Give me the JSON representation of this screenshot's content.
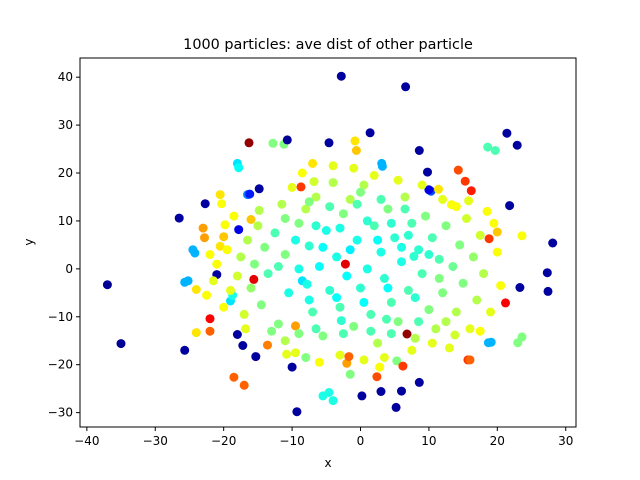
{
  "chart_data": {
    "type": "scatter",
    "title": "1000 particles: ave dist of other particle",
    "xlabel": "x",
    "ylabel": "y",
    "xlim": [
      -41,
      31.5
    ],
    "ylim": [
      -33,
      44
    ],
    "xticks": [
      -40,
      -30,
      -20,
      -10,
      0,
      10,
      20,
      30
    ],
    "yticks": [
      -30,
      -20,
      -10,
      0,
      10,
      20,
      30,
      40
    ],
    "grid": false,
    "colormap": "jet",
    "color_variable_range": [
      0,
      1
    ],
    "point_note": "Points sampled from the figure; color value c in [0,1] maps along the jet colormap (dark blue = far outliers, green-cyan = dense core).",
    "points": [
      [
        -37.0,
        -3.3,
        0.02
      ],
      [
        -35.0,
        -15.6,
        0.02
      ],
      [
        -26.5,
        10.6,
        0.03
      ],
      [
        -25.7,
        -17.0,
        0.03
      ],
      [
        -24.5,
        4.0,
        0.3
      ],
      [
        -24.2,
        3.3,
        0.3
      ],
      [
        -25.7,
        -2.8,
        0.3
      ],
      [
        -25.2,
        -2.5,
        0.3
      ],
      [
        -24.0,
        -4.3,
        0.65
      ],
      [
        -24.0,
        -13.3,
        0.65
      ],
      [
        -23.0,
        8.5,
        0.72
      ],
      [
        -22.7,
        13.6,
        0.03
      ],
      [
        -22.8,
        6.5,
        0.72
      ],
      [
        -22.0,
        -10.4,
        0.88
      ],
      [
        -22.0,
        -13.0,
        0.78
      ],
      [
        -21.0,
        -1.2,
        0.03
      ],
      [
        -20.5,
        15.5,
        0.65
      ],
      [
        -20.3,
        13.6,
        0.62
      ],
      [
        -20.5,
        4.7,
        0.65
      ],
      [
        -20.0,
        6.7,
        0.68
      ],
      [
        -19.0,
        -6.7,
        0.35
      ],
      [
        -18.7,
        -5.5,
        0.4
      ],
      [
        -18.0,
        22.0,
        0.35
      ],
      [
        -17.8,
        21.1,
        0.38
      ],
      [
        -18.5,
        -22.6,
        0.78
      ],
      [
        -17.8,
        8.2,
        0.1
      ],
      [
        -18.0,
        -13.7,
        0.03
      ],
      [
        -17.2,
        -16.0,
        0.03
      ],
      [
        -17.0,
        -24.3,
        0.78
      ],
      [
        -16.3,
        26.3,
        0.98
      ],
      [
        -16.5,
        15.5,
        0.25
      ],
      [
        -16.2,
        15.6,
        0.15
      ],
      [
        -16.0,
        10.3,
        0.68
      ],
      [
        -15.6,
        -2.2,
        0.9
      ],
      [
        -15.3,
        -18.3,
        0.03
      ],
      [
        -14.8,
        16.7,
        0.03
      ],
      [
        -13.6,
        -15.9,
        0.75
      ],
      [
        -12.8,
        26.2,
        0.5
      ],
      [
        -11.2,
        26.0,
        0.5
      ],
      [
        -10.7,
        26.9,
        0.02
      ],
      [
        -10.0,
        -20.5,
        0.03
      ],
      [
        -9.3,
        -29.8,
        0.03
      ],
      [
        -9.5,
        -11.9,
        0.72
      ],
      [
        -8.7,
        17.1,
        0.82
      ],
      [
        -8.0,
        -18.5,
        0.5
      ],
      [
        -5.5,
        -26.5,
        0.4
      ],
      [
        -4.6,
        -25.8,
        0.4
      ],
      [
        -4.0,
        -27.5,
        0.4
      ],
      [
        -4.6,
        26.3,
        0.03
      ],
      [
        -2.8,
        40.2,
        0.03
      ],
      [
        -2.2,
        1.0,
        0.9
      ],
      [
        -2.0,
        -19.7,
        0.72
      ],
      [
        -1.5,
        -22.0,
        0.5
      ],
      [
        -1.7,
        -18.3,
        0.78
      ],
      [
        -0.8,
        26.7,
        0.65
      ],
      [
        -0.6,
        24.7,
        0.68
      ],
      [
        0.2,
        -26.5,
        0.03
      ],
      [
        1.4,
        28.4,
        0.03
      ],
      [
        2.4,
        -22.5,
        0.8
      ],
      [
        3.0,
        -25.6,
        0.03
      ],
      [
        3.1,
        22.0,
        0.3
      ],
      [
        3.2,
        21.4,
        0.3
      ],
      [
        5.3,
        -19.2,
        0.5
      ],
      [
        5.2,
        -28.9,
        0.03
      ],
      [
        6.0,
        -25.5,
        0.03
      ],
      [
        6.2,
        -20.3,
        0.82
      ],
      [
        6.6,
        38.0,
        0.03
      ],
      [
        6.8,
        -13.6,
        0.98
      ],
      [
        8.6,
        24.7,
        0.03
      ],
      [
        8.6,
        -23.7,
        0.03
      ],
      [
        9.8,
        20.2,
        0.03
      ],
      [
        10.3,
        16.2,
        0.2
      ],
      [
        10.0,
        16.5,
        0.1
      ],
      [
        11.4,
        16.6,
        0.65
      ],
      [
        13.3,
        13.4,
        0.62
      ],
      [
        14.3,
        20.6,
        0.8
      ],
      [
        15.3,
        18.3,
        0.82
      ],
      [
        15.7,
        -19.0,
        0.82
      ],
      [
        16.2,
        16.3,
        0.85
      ],
      [
        16.0,
        -19.0,
        0.78
      ],
      [
        18.8,
        6.3,
        0.82
      ],
      [
        18.6,
        25.4,
        0.45
      ],
      [
        19.7,
        24.7,
        0.45
      ],
      [
        19.1,
        -15.3,
        0.3
      ],
      [
        18.7,
        -15.4,
        0.3
      ],
      [
        20.0,
        7.7,
        0.68
      ],
      [
        21.2,
        -7.1,
        0.88
      ],
      [
        21.4,
        28.3,
        0.03
      ],
      [
        21.8,
        13.2,
        0.03
      ],
      [
        22.9,
        25.8,
        0.03
      ],
      [
        23.0,
        -15.4,
        0.5
      ],
      [
        23.6,
        -14.2,
        0.5
      ],
      [
        23.6,
        6.9,
        0.62
      ],
      [
        23.3,
        -3.9,
        0.03
      ],
      [
        27.3,
        -0.8,
        0.03
      ],
      [
        27.4,
        -4.7,
        0.03
      ],
      [
        28.1,
        5.4,
        0.03
      ],
      [
        -12.5,
        7.5,
        0.45
      ],
      [
        -11.0,
        3.0,
        0.5
      ],
      [
        -10.5,
        -5.0,
        0.4
      ],
      [
        -9.0,
        9.5,
        0.5
      ],
      [
        -8.5,
        -2.5,
        0.35
      ],
      [
        -8.0,
        12.5,
        0.55
      ],
      [
        -7.5,
        4.8,
        0.42
      ],
      [
        -7.0,
        -9.0,
        0.45
      ],
      [
        -6.5,
        15.0,
        0.55
      ],
      [
        -6.0,
        0.5,
        0.38
      ],
      [
        -5.5,
        -14.0,
        0.5
      ],
      [
        -5.0,
        8.0,
        0.4
      ],
      [
        -4.5,
        -4.5,
        0.42
      ],
      [
        -4.0,
        18.0,
        0.55
      ],
      [
        -3.5,
        2.5,
        0.4
      ],
      [
        -3.0,
        -8.0,
        0.45
      ],
      [
        -2.5,
        11.5,
        0.5
      ],
      [
        -2.0,
        -1.5,
        0.38
      ],
      [
        -1.5,
        14.5,
        0.55
      ],
      [
        -1.0,
        -12.0,
        0.5
      ],
      [
        -0.5,
        6.0,
        0.4
      ],
      [
        0.0,
        -4.0,
        0.42
      ],
      [
        0.5,
        17.5,
        0.55
      ],
      [
        1.0,
        0.0,
        0.4
      ],
      [
        1.5,
        -9.5,
        0.45
      ],
      [
        2.0,
        9.0,
        0.45
      ],
      [
        2.5,
        -15.5,
        0.55
      ],
      [
        3.0,
        3.5,
        0.4
      ],
      [
        3.5,
        -2.0,
        0.42
      ],
      [
        4.0,
        12.5,
        0.5
      ],
      [
        4.5,
        -7.0,
        0.45
      ],
      [
        5.0,
        6.5,
        0.42
      ],
      [
        5.5,
        -11.0,
        0.5
      ],
      [
        6.0,
        1.5,
        0.4
      ],
      [
        6.5,
        15.0,
        0.55
      ],
      [
        7.0,
        -4.5,
        0.45
      ],
      [
        7.5,
        9.5,
        0.45
      ],
      [
        8.0,
        -14.5,
        0.55
      ],
      [
        8.5,
        4.0,
        0.42
      ],
      [
        9.0,
        -1.0,
        0.45
      ],
      [
        9.5,
        11.0,
        0.5
      ],
      [
        10.0,
        -8.5,
        0.5
      ],
      [
        10.5,
        6.5,
        0.45
      ],
      [
        11.0,
        -12.5,
        0.55
      ],
      [
        11.5,
        2.0,
        0.45
      ],
      [
        12.0,
        -5.0,
        0.5
      ],
      [
        12.5,
        9.0,
        0.5
      ],
      [
        13.0,
        -16.5,
        0.6
      ],
      [
        13.5,
        0.5,
        0.48
      ],
      [
        14.0,
        -9.0,
        0.55
      ],
      [
        14.5,
        5.0,
        0.5
      ],
      [
        15.0,
        -3.0,
        0.5
      ],
      [
        15.5,
        10.5,
        0.58
      ],
      [
        16.0,
        -12.5,
        0.6
      ],
      [
        16.5,
        2.5,
        0.52
      ],
      [
        17.0,
        -6.5,
        0.55
      ],
      [
        17.5,
        7.0,
        0.58
      ],
      [
        18.0,
        -1.0,
        0.55
      ],
      [
        18.5,
        12.0,
        0.62
      ],
      [
        19.0,
        -9.0,
        0.6
      ],
      [
        -13.5,
        -1.0,
        0.45
      ],
      [
        -14.0,
        4.5,
        0.5
      ],
      [
        -14.5,
        -7.5,
        0.5
      ],
      [
        -15.0,
        9.0,
        0.55
      ],
      [
        -15.5,
        1.0,
        0.5
      ],
      [
        -16.0,
        -4.0,
        0.52
      ],
      [
        -16.5,
        6.0,
        0.55
      ],
      [
        -17.0,
        -9.5,
        0.58
      ],
      [
        -17.5,
        2.5,
        0.55
      ],
      [
        -18.0,
        -1.5,
        0.58
      ],
      [
        -18.5,
        11.0,
        0.62
      ],
      [
        -19.0,
        -4.5,
        0.6
      ],
      [
        -19.5,
        4.0,
        0.62
      ],
      [
        -20.0,
        -8.0,
        0.62
      ],
      [
        -21.0,
        1.0,
        0.62
      ],
      [
        -12.0,
        -11.5,
        0.5
      ],
      [
        -11.5,
        13.5,
        0.55
      ],
      [
        -11.0,
        -15.0,
        0.55
      ],
      [
        -10.0,
        17.0,
        0.6
      ],
      [
        -9.5,
        -17.5,
        0.6
      ],
      [
        -8.5,
        20.0,
        0.62
      ],
      [
        -7.0,
        22.0,
        0.65
      ],
      [
        -6.0,
        -19.5,
        0.62
      ],
      [
        -4.0,
        21.5,
        0.6
      ],
      [
        -3.0,
        -18.0,
        0.6
      ],
      [
        -1.0,
        21.0,
        0.6
      ],
      [
        0.5,
        -19.0,
        0.6
      ],
      [
        2.0,
        19.5,
        0.6
      ],
      [
        3.5,
        -18.5,
        0.6
      ],
      [
        5.5,
        18.5,
        0.6
      ],
      [
        7.5,
        -17.0,
        0.6
      ],
      [
        9.0,
        17.5,
        0.6
      ],
      [
        10.5,
        -15.5,
        0.6
      ],
      [
        12.0,
        14.5,
        0.6
      ],
      [
        14.0,
        13.0,
        0.62
      ],
      [
        17.5,
        -13.0,
        0.62
      ],
      [
        20.0,
        3.5,
        0.62
      ],
      [
        20.5,
        -3.5,
        0.62
      ],
      [
        19.5,
        9.5,
        0.62
      ],
      [
        -22.5,
        -5.5,
        0.62
      ],
      [
        -22.0,
        3.0,
        0.62
      ],
      [
        -21.5,
        -2.5,
        0.6
      ],
      [
        -13.0,
        -13.0,
        0.5
      ],
      [
        -6.5,
        -12.5,
        0.45
      ],
      [
        -2.5,
        -13.5,
        0.45
      ],
      [
        1.5,
        -13.0,
        0.45
      ],
      [
        4.5,
        -13.5,
        0.45
      ],
      [
        8.5,
        -11.0,
        0.45
      ],
      [
        -4.5,
        13.0,
        0.45
      ],
      [
        -0.5,
        13.5,
        0.45
      ],
      [
        3.0,
        14.5,
        0.45
      ],
      [
        6.5,
        12.5,
        0.45
      ],
      [
        -9.5,
        6.0,
        0.4
      ],
      [
        -7.5,
        -6.5,
        0.4
      ],
      [
        -5.5,
        4.5,
        0.38
      ],
      [
        -3.5,
        -6.0,
        0.38
      ],
      [
        -1.5,
        4.0,
        0.36
      ],
      [
        0.5,
        -7.0,
        0.38
      ],
      [
        2.5,
        6.0,
        0.38
      ],
      [
        4.0,
        -4.0,
        0.38
      ],
      [
        6.0,
        4.5,
        0.4
      ],
      [
        8.0,
        -6.0,
        0.42
      ],
      [
        10.0,
        3.0,
        0.42
      ],
      [
        -9.0,
        0.0,
        0.4
      ],
      [
        -6.5,
        9.0,
        0.42
      ],
      [
        -3.0,
        8.5,
        0.4
      ],
      [
        1.0,
        10.0,
        0.42
      ],
      [
        4.5,
        9.5,
        0.42
      ],
      [
        7.0,
        7.0,
        0.42
      ],
      [
        -7.5,
        14.0,
        0.5
      ],
      [
        -9.0,
        -13.5,
        0.5
      ],
      [
        0.0,
        16.0,
        0.5
      ],
      [
        -12.0,
        0.5,
        0.45
      ],
      [
        11.5,
        -2.0,
        0.5
      ],
      [
        12.5,
        -11.0,
        0.55
      ],
      [
        -11.0,
        10.5,
        0.5
      ],
      [
        3.8,
        -10.5,
        0.45
      ],
      [
        -2.8,
        -10.8,
        0.42
      ],
      [
        7.8,
        2.6,
        0.42
      ],
      [
        -7.8,
        -3.2,
        0.4
      ],
      [
        2.8,
        -20.5,
        0.62
      ],
      [
        -6.8,
        18.2,
        0.58
      ],
      [
        13.8,
        -13.8,
        0.58
      ],
      [
        15.8,
        14.2,
        0.6
      ],
      [
        -19.8,
        9.2,
        0.62
      ],
      [
        -14.8,
        12.2,
        0.55
      ],
      [
        -16.8,
        -12.5,
        0.6
      ],
      [
        -10.8,
        -17.8,
        0.6
      ]
    ]
  }
}
